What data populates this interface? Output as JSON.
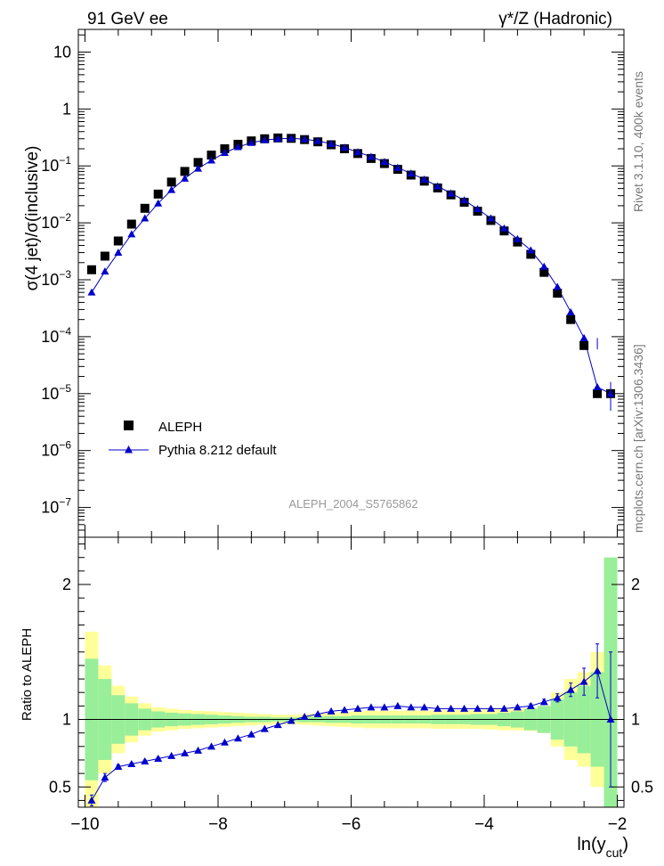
{
  "header": {
    "left_title": "91 GeV ee",
    "right_title": "γ*/Z (Hadronic)"
  },
  "side_labels": {
    "rivet": "Rivet 3.1.10,  400k events",
    "mcplots": "mcplots.cern.ch [arXiv:1306.3436]"
  },
  "watermark": "ALEPH_2004_S5765862",
  "legend": {
    "data_label": "ALEPH",
    "mc_label": "Pythia 8.212 default"
  },
  "colors": {
    "data": "#000000",
    "mc": "#0000cc",
    "band_stat": "#99ee99",
    "band_total": "#ffff99"
  },
  "chart_data": [
    {
      "type": "scatter",
      "title": "",
      "xlabel": "ln(y_cut)",
      "ylabel": "σ(4 jet)/σ(inclusive)",
      "yscale": "log",
      "xlim": [
        -10.1,
        -1.9
      ],
      "ylim": [
        3e-08,
        25
      ],
      "y_tick_labels": [
        "10^-7",
        "10^-6",
        "10^-5",
        "10^-4",
        "10^-3",
        "10^-2",
        "10^-1",
        "1",
        "10"
      ],
      "legend_position": "bottom-left",
      "series": [
        {
          "name": "ALEPH",
          "marker": "square",
          "x": [
            -9.9,
            -9.7,
            -9.5,
            -9.3,
            -9.1,
            -8.9,
            -8.7,
            -8.5,
            -8.3,
            -8.1,
            -7.9,
            -7.7,
            -7.5,
            -7.3,
            -7.1,
            -6.9,
            -6.7,
            -6.5,
            -6.3,
            -6.1,
            -5.9,
            -5.7,
            -5.5,
            -5.3,
            -5.1,
            -4.9,
            -4.7,
            -4.5,
            -4.3,
            -4.1,
            -3.9,
            -3.7,
            -3.5,
            -3.3,
            -3.1,
            -2.9,
            -2.7,
            -2.5,
            -2.3,
            -2.1
          ],
          "y": [
            0.0015,
            0.0026,
            0.0048,
            0.0095,
            0.018,
            0.032,
            0.052,
            0.08,
            0.115,
            0.155,
            0.2,
            0.24,
            0.275,
            0.3,
            0.31,
            0.305,
            0.29,
            0.265,
            0.235,
            0.2,
            0.165,
            0.135,
            0.11,
            0.087,
            0.069,
            0.054,
            0.041,
            0.031,
            0.023,
            0.016,
            0.011,
            0.0072,
            0.0046,
            0.0028,
            0.00135,
            0.00058,
            0.0002,
            7e-05,
            1e-05,
            1e-05
          ]
        },
        {
          "name": "Pythia 8.212 default",
          "marker": "triangle",
          "x": [
            -9.9,
            -9.7,
            -9.5,
            -9.3,
            -9.1,
            -8.9,
            -8.7,
            -8.5,
            -8.3,
            -8.1,
            -7.9,
            -7.7,
            -7.5,
            -7.3,
            -7.1,
            -6.9,
            -6.7,
            -6.5,
            -6.3,
            -6.1,
            -5.9,
            -5.7,
            -5.5,
            -5.3,
            -5.1,
            -4.9,
            -4.7,
            -4.5,
            -4.3,
            -4.1,
            -3.9,
            -3.7,
            -3.5,
            -3.3,
            -3.1,
            -2.9,
            -2.7,
            -2.5,
            -2.3,
            -2.1
          ],
          "y": [
            0.0006,
            0.0014,
            0.003,
            0.0063,
            0.012,
            0.022,
            0.038,
            0.06,
            0.09,
            0.125,
            0.17,
            0.215,
            0.255,
            0.285,
            0.3,
            0.305,
            0.295,
            0.275,
            0.245,
            0.21,
            0.175,
            0.145,
            0.118,
            0.093,
            0.074,
            0.058,
            0.044,
            0.033,
            0.025,
            0.0175,
            0.012,
            0.008,
            0.0052,
            0.0033,
            0.0017,
            0.00075,
            0.00027,
            9.5e-05,
            1.3e-05,
            1e-05
          ]
        }
      ]
    },
    {
      "type": "line",
      "xlabel": "ln(y_cut)",
      "ylabel": "Ratio to ALEPH",
      "xlim": [
        -10.1,
        -1.9
      ],
      "ylim": [
        0.35,
        2.35
      ],
      "y_tick_labels": [
        "0.5",
        "1",
        "2"
      ],
      "x_tick_labels": [
        "−10",
        "−8",
        "−6",
        "−4",
        "−2"
      ],
      "x": [
        -9.9,
        -9.7,
        -9.5,
        -9.3,
        -9.1,
        -8.9,
        -8.7,
        -8.5,
        -8.3,
        -8.1,
        -7.9,
        -7.7,
        -7.5,
        -7.3,
        -7.1,
        -6.9,
        -6.7,
        -6.5,
        -6.3,
        -6.1,
        -5.9,
        -5.7,
        -5.5,
        -5.3,
        -5.1,
        -4.9,
        -4.7,
        -4.5,
        -4.3,
        -4.1,
        -3.9,
        -3.7,
        -3.5,
        -3.3,
        -3.1,
        -2.9,
        -2.7,
        -2.5,
        -2.3,
        -2.1
      ],
      "bin_edges": [
        -10.0,
        -9.8,
        -9.6,
        -9.4,
        -9.2,
        -9.0,
        -8.8,
        -8.6,
        -8.4,
        -8.2,
        -8.0,
        -7.8,
        -7.6,
        -7.4,
        -7.2,
        -7.0,
        -6.8,
        -6.6,
        -6.4,
        -6.2,
        -6.0,
        -5.8,
        -5.6,
        -5.4,
        -5.2,
        -5.0,
        -4.8,
        -4.6,
        -4.4,
        -4.2,
        -4.0,
        -3.8,
        -3.6,
        -3.4,
        -3.2,
        -3.0,
        -2.8,
        -2.6,
        -2.4,
        -2.2,
        -2.0
      ],
      "band_total": [
        0.65,
        0.4,
        0.25,
        0.17,
        0.12,
        0.09,
        0.08,
        0.07,
        0.065,
        0.06,
        0.055,
        0.05,
        0.045,
        0.04,
        0.035,
        0.035,
        0.04,
        0.045,
        0.05,
        0.055,
        0.06,
        0.065,
        0.065,
        0.065,
        0.065,
        0.065,
        0.07,
        0.07,
        0.07,
        0.07,
        0.075,
        0.08,
        0.08,
        0.085,
        0.1,
        0.2,
        0.3,
        0.35,
        0.5,
        1.2
      ],
      "band_stat": [
        0.45,
        0.3,
        0.18,
        0.12,
        0.08,
        0.06,
        0.05,
        0.045,
        0.04,
        0.035,
        0.03,
        0.025,
        0.02,
        0.02,
        0.015,
        0.015,
        0.02,
        0.02,
        0.025,
        0.025,
        0.03,
        0.03,
        0.03,
        0.03,
        0.03,
        0.03,
        0.035,
        0.035,
        0.035,
        0.04,
        0.04,
        0.05,
        0.06,
        0.08,
        0.1,
        0.15,
        0.2,
        0.25,
        0.35,
        1.2
      ],
      "series": [
        {
          "name": "Pythia 8.212 default",
          "values": [
            0.4,
            0.57,
            0.65,
            0.67,
            0.69,
            0.71,
            0.73,
            0.75,
            0.77,
            0.8,
            0.83,
            0.86,
            0.89,
            0.93,
            0.96,
            0.99,
            1.02,
            1.04,
            1.06,
            1.07,
            1.08,
            1.09,
            1.09,
            1.1,
            1.09,
            1.09,
            1.08,
            1.08,
            1.08,
            1.08,
            1.08,
            1.08,
            1.09,
            1.1,
            1.13,
            1.16,
            1.22,
            1.28,
            1.36,
            1.0
          ],
          "errors": [
            0.04,
            0.03,
            0.015,
            0.01,
            0.01,
            0.01,
            0.008,
            0.008,
            0.007,
            0.006,
            0.006,
            0.005,
            0.005,
            0.005,
            0.005,
            0.005,
            0.005,
            0.005,
            0.005,
            0.005,
            0.005,
            0.005,
            0.005,
            0.005,
            0.005,
            0.005,
            0.005,
            0.006,
            0.006,
            0.007,
            0.008,
            0.01,
            0.012,
            0.015,
            0.02,
            0.03,
            0.05,
            0.1,
            0.2,
            0.5
          ]
        }
      ]
    }
  ]
}
